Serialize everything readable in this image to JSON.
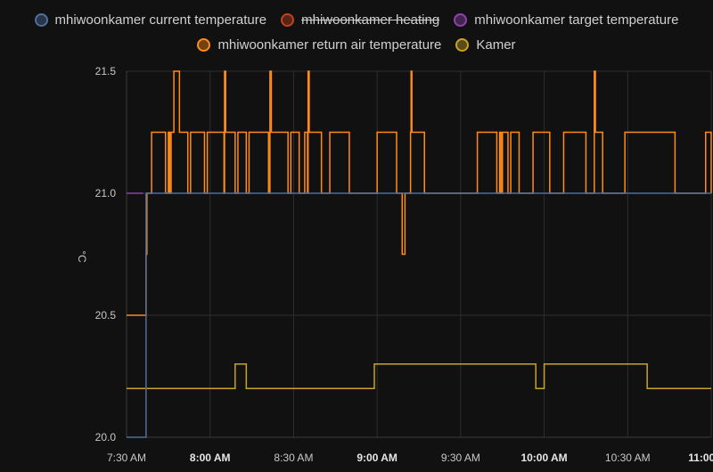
{
  "legend": {
    "items": [
      {
        "label": "mhiwoonkamer current temperature",
        "color": "#4e6f9c",
        "hidden": false
      },
      {
        "label": "mhiwoonkamer heating",
        "color": "#c4421e",
        "hidden": true
      },
      {
        "label": "mhiwoonkamer target temperature",
        "color": "#8e44ad",
        "hidden": false
      },
      {
        "label": "mhiwoonkamer return air temperature",
        "color": "#ff8c1a",
        "hidden": false
      },
      {
        "label": "Kamer",
        "color": "#c9a227",
        "hidden": false
      }
    ]
  },
  "chart_data": {
    "type": "line",
    "ylabel": "°C",
    "xlabel": "",
    "ylim": [
      20.0,
      21.5
    ],
    "xlim": [
      "07:30",
      "11:00"
    ],
    "grid": true,
    "legend_placement": "top",
    "y_ticks": [
      "20.0",
      "20.5",
      "21.0",
      "21.5"
    ],
    "x_ticks": [
      {
        "label": "7:30 AM",
        "time": "07:30",
        "bold": false
      },
      {
        "label": "8:00 AM",
        "time": "08:00",
        "bold": true
      },
      {
        "label": "8:30 AM",
        "time": "08:30",
        "bold": false
      },
      {
        "label": "9:00 AM",
        "time": "09:00",
        "bold": true
      },
      {
        "label": "9:30 AM",
        "time": "09:30",
        "bold": false
      },
      {
        "label": "10:00 AM",
        "time": "10:00",
        "bold": true
      },
      {
        "label": "10:30 AM",
        "time": "10:30",
        "bold": false
      },
      {
        "label": "11:00 AM",
        "time": "11:00",
        "bold": true
      }
    ],
    "series": [
      {
        "name": "mhiwoonkamer target temperature",
        "color": "#8e44ad",
        "step": true,
        "points": [
          [
            "07:30",
            21.0
          ],
          [
            "07:36",
            21.0
          ]
        ]
      },
      {
        "name": "mhiwoonkamer return air temperature",
        "color": "#ff8c1a",
        "step": true,
        "points": [
          [
            "07:30",
            20.5
          ],
          [
            "07:36",
            20.5
          ],
          [
            "07:36.2",
            20.75
          ],
          [
            "07:36.5",
            21.0
          ],
          [
            "07:37",
            21.0
          ],
          [
            "07:37.3",
            21.0
          ],
          [
            "07:38",
            21.0
          ],
          [
            "07:38",
            21.0
          ],
          [
            "07:38.7",
            21.0
          ],
          [
            "07:39",
            21.0
          ],
          [
            "07:38",
            21.0
          ],
          [
            "07:44",
            21.0
          ],
          [
            "07:44",
            21.0
          ],
          [
            "07:44",
            21.0
          ],
          [
            "07:38",
            21.0
          ]
        ]
      },
      {
        "name": "Kamer",
        "color": "#c9a227",
        "step": true,
        "points": [
          [
            "07:30",
            20.2
          ],
          [
            "08:09",
            20.3
          ],
          [
            "08:13",
            20.2
          ],
          [
            "08:59",
            20.3
          ],
          [
            "09:57",
            20.2
          ],
          [
            "10:00",
            20.3
          ],
          [
            "10:37",
            20.2
          ],
          [
            "11:00",
            20.2
          ]
        ]
      },
      {
        "name": "mhiwoonkamer current temperature",
        "color": "#4e6f9c",
        "step": true,
        "points": [
          [
            "07:30",
            20.0
          ],
          [
            "07:37",
            21.0
          ],
          [
            "11:00",
            21.0
          ]
        ]
      }
    ],
    "return_air_steps": [
      [
        "07:30",
        20.5
      ],
      [
        "07:37",
        20.75
      ],
      [
        "07:37.3",
        21.0
      ],
      [
        "07:38",
        21.0
      ],
      [
        "07:39",
        21.25
      ],
      [
        "07:44",
        21.0
      ],
      [
        "07:45",
        21.25
      ],
      [
        "07:45.5",
        21.0
      ],
      [
        "07:46",
        21.25
      ],
      [
        "07:47",
        21.5
      ],
      [
        "07:49",
        21.25
      ],
      [
        "07:52",
        21.0
      ],
      [
        "07:53",
        21.25
      ],
      [
        "07:58",
        21.0
      ],
      [
        "07:59",
        21.25
      ],
      [
        "08:05",
        21.0
      ],
      [
        "08:05.2",
        21.5
      ],
      [
        "08:05.6",
        21.25
      ],
      [
        "08:09",
        21.0
      ],
      [
        "08:10",
        21.25
      ],
      [
        "08:13",
        21.0
      ],
      [
        "08:14",
        21.25
      ],
      [
        "08:21",
        21.0
      ],
      [
        "08:21.5",
        21.5
      ],
      [
        "08:22",
        21.25
      ],
      [
        "08:28",
        21.0
      ],
      [
        "08:29",
        21.25
      ],
      [
        "08:32",
        21.0
      ],
      [
        "08:34",
        21.25
      ],
      [
        "08:35",
        21.0
      ],
      [
        "08:35.2",
        21.5
      ],
      [
        "08:35.6",
        21.25
      ],
      [
        "08:40",
        21.0
      ],
      [
        "08:43",
        21.25
      ],
      [
        "08:50",
        21.0
      ],
      [
        "08:51",
        21.0
      ],
      [
        "09:00",
        21.25
      ],
      [
        "09:07",
        21.0
      ],
      [
        "09:09",
        20.75
      ],
      [
        "09:10",
        21.0
      ],
      [
        "09:12",
        21.25
      ],
      [
        "09:12.2",
        21.5
      ],
      [
        "09:12.5",
        21.25
      ],
      [
        "09:17",
        21.0
      ],
      [
        "09:36",
        21.25
      ],
      [
        "09:43",
        21.0
      ],
      [
        "09:44",
        21.25
      ],
      [
        "09:44.5",
        21.0
      ],
      [
        "09:45",
        21.25
      ],
      [
        "09:47",
        21.0
      ],
      [
        "09:48",
        21.25
      ],
      [
        "09:51",
        21.0
      ],
      [
        "09:56",
        21.25
      ],
      [
        "10:02",
        21.0
      ],
      [
        "10:07",
        21.25
      ],
      [
        "10:15",
        21.0
      ],
      [
        "10:18",
        21.5
      ],
      [
        "10:18.4",
        21.25
      ],
      [
        "10:21",
        21.0
      ],
      [
        "10:23",
        21.0
      ],
      [
        "10:29",
        21.25
      ],
      [
        "10:30",
        21.25
      ],
      [
        "10:47",
        21.0
      ],
      [
        "10:58",
        21.25
      ],
      [
        "11:00",
        21.0
      ]
    ]
  }
}
